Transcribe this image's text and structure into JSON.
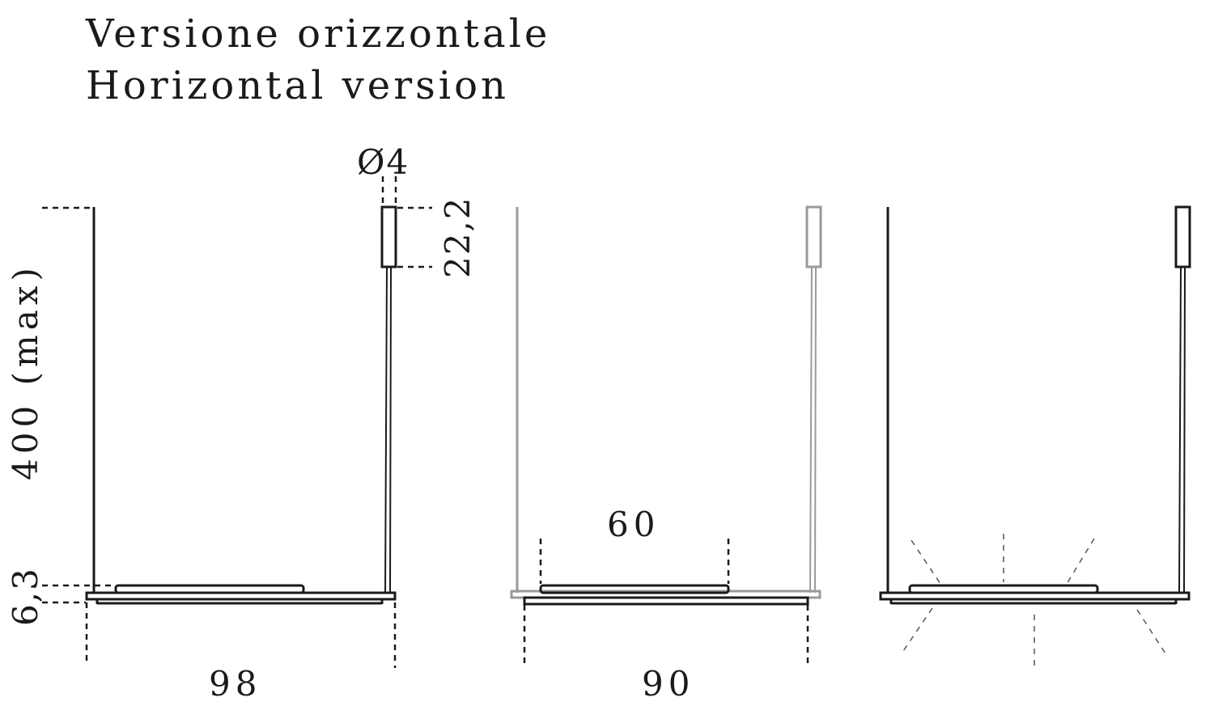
{
  "title": {
    "line1": "Versione orizzontale",
    "line2": "Horizontal version"
  },
  "dimensions": {
    "height_max": "400 (max)",
    "diameter": "Ø4",
    "canopy_height": "22,2",
    "body_thickness": "6,3",
    "width_left": "98",
    "width_middle": "90",
    "diffuser_width": "60"
  },
  "colors": {
    "line": "#1a1a1a",
    "grey_line": "#9a9a9a",
    "ray": "#555555"
  }
}
